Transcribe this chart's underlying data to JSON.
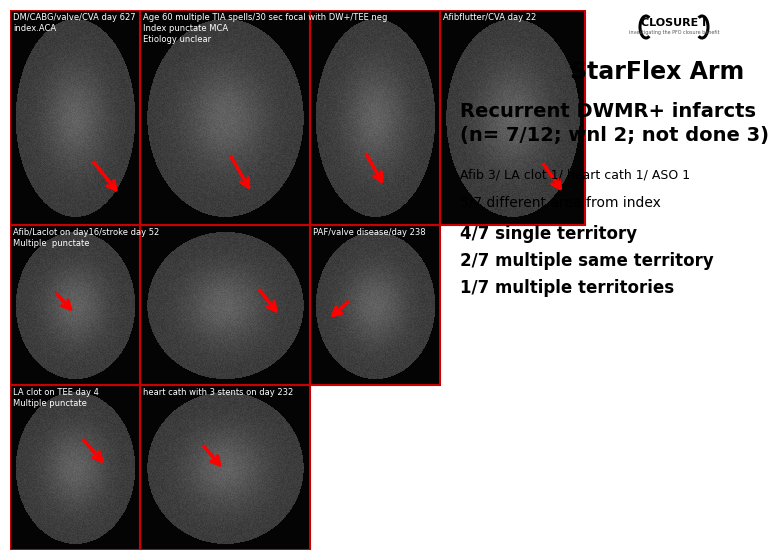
{
  "bg_color": "#ffffff",
  "image_bg": "#1a1a1a",
  "border_color": "#cc0000",
  "title": "StarFlex Arm",
  "subtitle": "Recurrent DWMR+ infarcts\n(n= 7/12; wnl 2; not done 3)",
  "line1": "Afib 3/ LA clot 1/ heart cath 1/ ASO 1",
  "line2": "5/7 different area from index",
  "line3": "4/7 single territory",
  "line4": "2/7 multiple same territory",
  "line5": "1/7 multiple territories",
  "logo_text": "CLOSURE I",
  "cell_labels": [
    [
      "DM/CABG/valve/CVA day 627\nindex.ACA",
      "Age 60 multiple TIA spells/30 sec focal with DW+/TEE neg\nIndex punctate MCA\nEtiology unclear",
      "Afibflutter/CVA day 22"
    ],
    [
      "Afib/Laclot on day16/stroke day 52\nMultiple  punctate",
      "",
      "PAF/valve disease/day 238"
    ],
    [
      "LA clot on TEE day 4\nMultiple punctate",
      "heart cath with 3 stents on day 232",
      ""
    ]
  ],
  "title_fontsize": 17,
  "subtitle_fontsize": 14,
  "body_fontsize": 9,
  "list_fontsize": 12,
  "label_fontsize": 6,
  "logo_fontsize": 8
}
